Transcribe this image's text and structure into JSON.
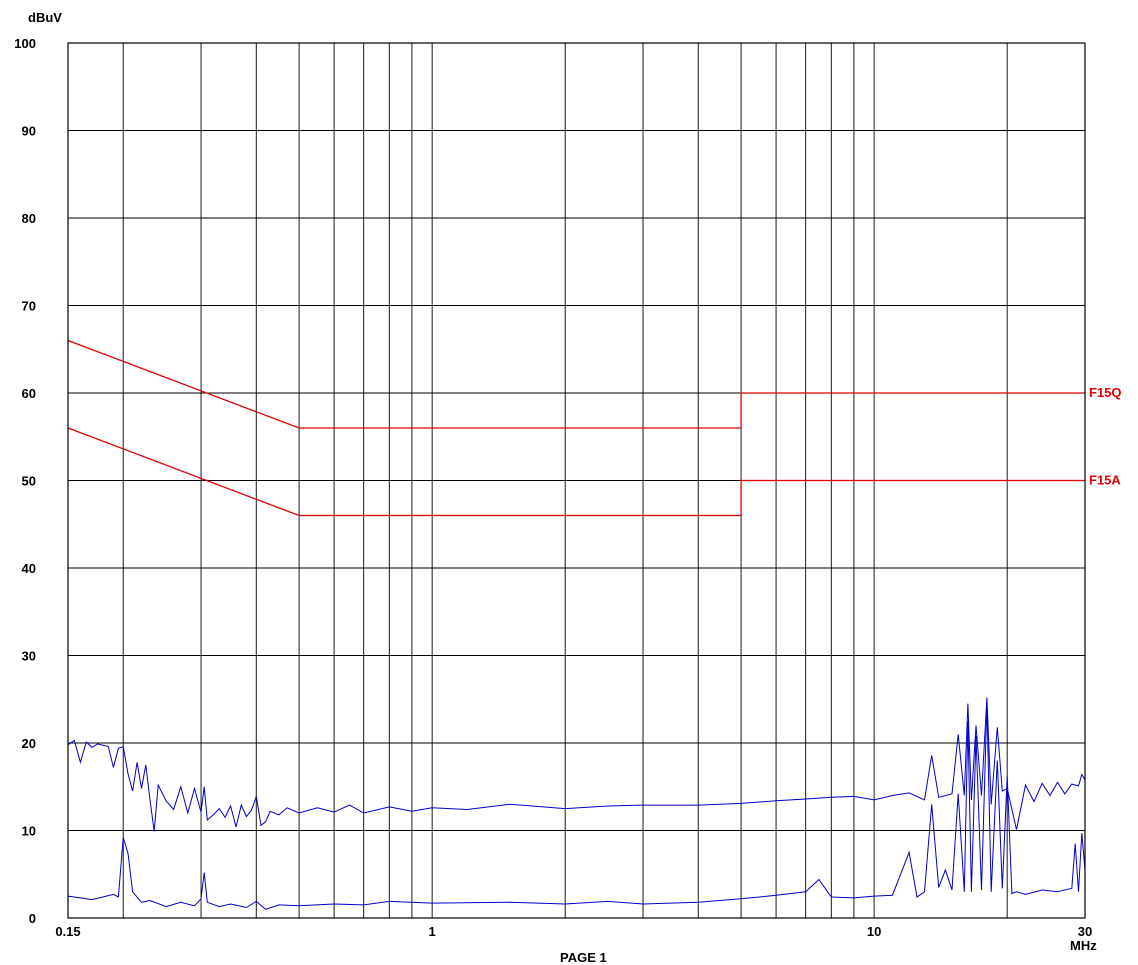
{
  "chart_data": {
    "type": "line",
    "title": "",
    "ylabel": "dBuV",
    "xlabel": "MHz",
    "x_scale": "log",
    "xlim": [
      0.15,
      30
    ],
    "ylim": [
      0,
      100
    ],
    "grid": true,
    "y_ticks": [
      0,
      10,
      20,
      30,
      40,
      50,
      60,
      70,
      80,
      90,
      100
    ],
    "y_tick_labels": [
      "0",
      "10",
      "20",
      "30",
      "40",
      "50",
      "60",
      "70",
      "80",
      "90",
      "100"
    ],
    "x_ticks_labeled": [
      0.15,
      1,
      10,
      30
    ],
    "x_tick_labels": [
      "0.15",
      "1",
      "10",
      "30"
    ],
    "x_grid": [
      0.2,
      0.3,
      0.4,
      0.5,
      0.6,
      0.7,
      0.8,
      0.9,
      1,
      2,
      3,
      4,
      5,
      6,
      7,
      8,
      9,
      10,
      20
    ],
    "limit_lines": [
      {
        "name": "F15Q",
        "color": "#e00000",
        "points": [
          [
            0.15,
            66
          ],
          [
            0.5,
            56
          ],
          [
            5,
            56
          ],
          [
            5,
            60
          ],
          [
            30,
            60
          ]
        ]
      },
      {
        "name": "F15A",
        "color": "#e00000",
        "points": [
          [
            0.15,
            56
          ],
          [
            0.5,
            46
          ],
          [
            5,
            46
          ],
          [
            5,
            50
          ],
          [
            30,
            50
          ]
        ]
      }
    ],
    "series": [
      {
        "color": "#0000cc",
        "points": [
          [
            0.15,
            19.8
          ],
          [
            0.155,
            20.3
          ],
          [
            0.16,
            17.8
          ],
          [
            0.165,
            20.1
          ],
          [
            0.17,
            19.5
          ],
          [
            0.175,
            19.9
          ],
          [
            0.185,
            19.6
          ],
          [
            0.19,
            17.2
          ],
          [
            0.195,
            19.4
          ],
          [
            0.2,
            19.6
          ],
          [
            0.205,
            16.5
          ],
          [
            0.21,
            14.5
          ],
          [
            0.215,
            17.8
          ],
          [
            0.22,
            14.8
          ],
          [
            0.225,
            17.5
          ],
          [
            0.23,
            13.5
          ],
          [
            0.235,
            9.9
          ],
          [
            0.24,
            15.2
          ],
          [
            0.25,
            13.4
          ],
          [
            0.26,
            12.4
          ],
          [
            0.27,
            15.0
          ],
          [
            0.28,
            12.0
          ],
          [
            0.29,
            14.8
          ],
          [
            0.3,
            12.1
          ],
          [
            0.305,
            15.0
          ],
          [
            0.31,
            11.2
          ],
          [
            0.32,
            11.8
          ],
          [
            0.33,
            12.5
          ],
          [
            0.34,
            11.5
          ],
          [
            0.35,
            12.8
          ],
          [
            0.36,
            10.4
          ],
          [
            0.37,
            12.9
          ],
          [
            0.38,
            11.6
          ],
          [
            0.39,
            12.3
          ],
          [
            0.4,
            13.9
          ],
          [
            0.41,
            10.6
          ],
          [
            0.42,
            11.0
          ],
          [
            0.43,
            12.2
          ],
          [
            0.45,
            11.8
          ],
          [
            0.47,
            12.6
          ],
          [
            0.5,
            12.0
          ],
          [
            0.55,
            12.6
          ],
          [
            0.6,
            12.1
          ],
          [
            0.65,
            12.9
          ],
          [
            0.7,
            12.0
          ],
          [
            0.8,
            12.7
          ],
          [
            0.9,
            12.2
          ],
          [
            1.0,
            12.6
          ],
          [
            1.2,
            12.4
          ],
          [
            1.5,
            13.0
          ],
          [
            2.0,
            12.5
          ],
          [
            2.5,
            12.8
          ],
          [
            3.0,
            12.9
          ],
          [
            4.0,
            12.9
          ],
          [
            5.0,
            13.1
          ],
          [
            6.0,
            13.4
          ],
          [
            7.0,
            13.6
          ],
          [
            8.0,
            13.8
          ],
          [
            9.0,
            13.9
          ],
          [
            10.0,
            13.5
          ],
          [
            11.0,
            14.0
          ],
          [
            12.0,
            14.3
          ],
          [
            13.0,
            13.5
          ],
          [
            13.5,
            18.6
          ],
          [
            14.0,
            13.8
          ],
          [
            15.0,
            14.2
          ],
          [
            15.5,
            21.0
          ],
          [
            16.0,
            14.0
          ],
          [
            16.3,
            24.5
          ],
          [
            16.6,
            13.5
          ],
          [
            17.0,
            22.0
          ],
          [
            17.5,
            14.0
          ],
          [
            18.0,
            25.2
          ],
          [
            18.4,
            13.0
          ],
          [
            19.0,
            21.8
          ],
          [
            19.5,
            14.5
          ],
          [
            20.0,
            14.8
          ],
          [
            21.0,
            10.1
          ],
          [
            22.0,
            15.2
          ],
          [
            23.0,
            13.3
          ],
          [
            24.0,
            15.4
          ],
          [
            25.0,
            14.0
          ],
          [
            26.0,
            15.5
          ],
          [
            27.0,
            14.2
          ],
          [
            28.0,
            15.3
          ],
          [
            29.0,
            15.1
          ],
          [
            29.5,
            16.4
          ],
          [
            30.0,
            15.8
          ]
        ]
      },
      {
        "color": "#0000cc",
        "points": [
          [
            0.15,
            2.5
          ],
          [
            0.16,
            2.3
          ],
          [
            0.17,
            2.1
          ],
          [
            0.19,
            2.7
          ],
          [
            0.195,
            2.4
          ],
          [
            0.2,
            9.2
          ],
          [
            0.205,
            7.4
          ],
          [
            0.21,
            3.0
          ],
          [
            0.22,
            1.8
          ],
          [
            0.23,
            2.0
          ],
          [
            0.25,
            1.3
          ],
          [
            0.27,
            1.8
          ],
          [
            0.29,
            1.4
          ],
          [
            0.3,
            2.2
          ],
          [
            0.305,
            5.2
          ],
          [
            0.31,
            1.8
          ],
          [
            0.33,
            1.3
          ],
          [
            0.35,
            1.6
          ],
          [
            0.38,
            1.2
          ],
          [
            0.4,
            1.9
          ],
          [
            0.42,
            1.0
          ],
          [
            0.45,
            1.5
          ],
          [
            0.5,
            1.4
          ],
          [
            0.6,
            1.6
          ],
          [
            0.7,
            1.5
          ],
          [
            0.8,
            1.9
          ],
          [
            1.0,
            1.7
          ],
          [
            1.5,
            1.8
          ],
          [
            2.0,
            1.6
          ],
          [
            2.5,
            1.9
          ],
          [
            3.0,
            1.6
          ],
          [
            4.0,
            1.8
          ],
          [
            5.0,
            2.2
          ],
          [
            6.0,
            2.6
          ],
          [
            7.0,
            3.0
          ],
          [
            7.5,
            4.4
          ],
          [
            8.0,
            2.4
          ],
          [
            9.0,
            2.3
          ],
          [
            10.0,
            2.5
          ],
          [
            11.0,
            2.6
          ],
          [
            12.0,
            7.5
          ],
          [
            12.5,
            2.4
          ],
          [
            13.0,
            3.0
          ],
          [
            13.5,
            13.0
          ],
          [
            14.0,
            3.5
          ],
          [
            14.5,
            5.5
          ],
          [
            15.0,
            3.2
          ],
          [
            15.5,
            14.2
          ],
          [
            16.0,
            3.0
          ],
          [
            16.3,
            22.5
          ],
          [
            16.6,
            3.0
          ],
          [
            17.0,
            20.8
          ],
          [
            17.5,
            3.2
          ],
          [
            18.0,
            24.5
          ],
          [
            18.4,
            3.0
          ],
          [
            19.0,
            18.0
          ],
          [
            19.5,
            3.4
          ],
          [
            20.0,
            16.2
          ],
          [
            20.5,
            2.8
          ],
          [
            21.0,
            3.0
          ],
          [
            22.0,
            2.7
          ],
          [
            24.0,
            3.2
          ],
          [
            26.0,
            3.0
          ],
          [
            28.0,
            3.4
          ],
          [
            28.5,
            8.5
          ],
          [
            29.0,
            3.0
          ],
          [
            29.5,
            9.7
          ],
          [
            30.0,
            5.5
          ]
        ]
      }
    ]
  },
  "footer": {
    "text": "PAGE 1"
  }
}
